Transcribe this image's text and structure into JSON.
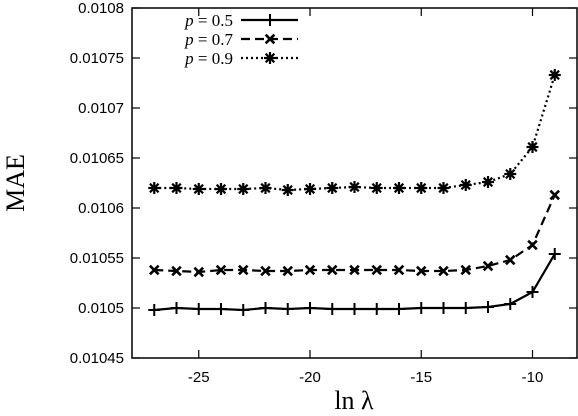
{
  "chart_data": {
    "type": "line",
    "title": "",
    "xlabel": "ln λ",
    "ylabel": "MAE",
    "xlim": [
      -28,
      -8
    ],
    "ylim": [
      0.01045,
      0.0108
    ],
    "x_ticks": [
      -25,
      -20,
      -15,
      -10
    ],
    "x_tick_labels": [
      "-25",
      "-20",
      "-15",
      "-10"
    ],
    "y_ticks": [
      0.01045,
      0.0105,
      0.01055,
      0.0106,
      0.01065,
      0.0107,
      0.01075,
      0.0108
    ],
    "y_tick_labels": [
      "0.01045",
      "0.0105",
      "0.01055",
      "0.0106",
      "0.01065",
      "0.0107",
      "0.01075",
      "0.0108"
    ],
    "grid": false,
    "legend_position": "top-left",
    "x": [
      -27,
      -26,
      -25,
      -24,
      -23,
      -22,
      -21,
      -20,
      -19,
      -18,
      -17,
      -16,
      -15,
      -14,
      -13,
      -12,
      -11,
      -10,
      -9
    ],
    "series": [
      {
        "name": "p = 0.5",
        "name_var": "p",
        "name_rest": " = 0.5",
        "dash": "solid",
        "marker": "plus",
        "values": [
          0.010498,
          0.0105,
          0.010499,
          0.010499,
          0.010498,
          0.0105,
          0.010499,
          0.0105,
          0.010499,
          0.010499,
          0.010499,
          0.010499,
          0.0105,
          0.0105,
          0.0105,
          0.010501,
          0.010504,
          0.010516,
          0.010554
        ]
      },
      {
        "name": "p = 0.7",
        "name_var": "p",
        "name_rest": " = 0.7",
        "dash": "dashed",
        "marker": "x",
        "values": [
          0.010538,
          0.010537,
          0.010536,
          0.010538,
          0.010538,
          0.010537,
          0.010537,
          0.010538,
          0.010538,
          0.010538,
          0.010538,
          0.010538,
          0.010537,
          0.010537,
          0.010538,
          0.010542,
          0.010548,
          0.010563,
          0.010613
        ]
      },
      {
        "name": "p = 0.9",
        "name_var": "p",
        "name_rest": " = 0.9",
        "dash": "dotted",
        "marker": "asterisk",
        "values": [
          0.01062,
          0.01062,
          0.010619,
          0.010619,
          0.010619,
          0.01062,
          0.010618,
          0.010619,
          0.01062,
          0.010621,
          0.01062,
          0.01062,
          0.01062,
          0.01062,
          0.010623,
          0.010626,
          0.010634,
          0.010661,
          0.010733
        ]
      }
    ]
  }
}
